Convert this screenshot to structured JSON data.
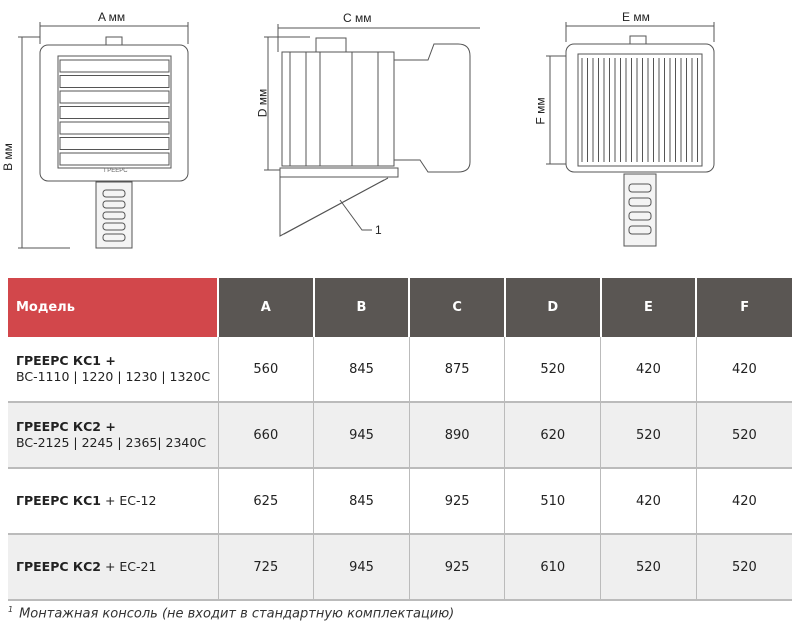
{
  "drawings": {
    "front_width_label": "A мм",
    "front_height_label": "B мм",
    "side_depth_label": "C мм",
    "side_height_label": "D мм",
    "back_width_label": "E мм",
    "back_height_label": "F мм",
    "callout_number": "1",
    "brand_text": "ГРЕЕРС"
  },
  "table": {
    "headers": [
      "Модель",
      "A",
      "B",
      "C",
      "D",
      "E",
      "F"
    ],
    "rows": [
      {
        "model_bold": "ГРЕЕРС КС1 +",
        "model_rest": "BC-1110 | 1220 | 1230 | 1320C",
        "values": [
          "560",
          "845",
          "875",
          "520",
          "420",
          "420"
        ]
      },
      {
        "model_bold": "ГРЕЕРС КС2 +",
        "model_rest": "BC-2125 | 2245 | 2365| 2340C",
        "values": [
          "660",
          "945",
          "890",
          "620",
          "520",
          "520"
        ]
      },
      {
        "model_bold": "ГРЕЕРС КС1",
        "model_rest": " + EC-12",
        "values": [
          "625",
          "845",
          "925",
          "510",
          "420",
          "420"
        ]
      },
      {
        "model_bold": "ГРЕЕРС КС2",
        "model_rest": " + EC-21",
        "values": [
          "725",
          "945",
          "925",
          "610",
          "520",
          "520"
        ]
      }
    ]
  },
  "footnote": {
    "mark": "1",
    "text": "Монтажная консоль (не входит в стандартную комплектацию)"
  },
  "colors": {
    "model_header": "#d2474b",
    "dim_header": "#5a5653",
    "alt_row": "#efefef"
  }
}
